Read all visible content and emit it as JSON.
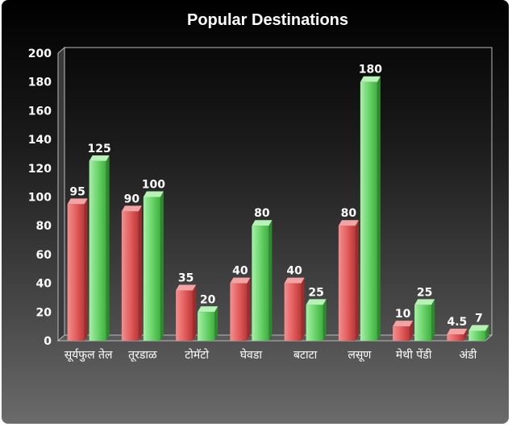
{
  "chart_data": {
    "type": "bar",
    "title": "Popular Destinations",
    "xlabel": "",
    "ylabel": "",
    "categories": [
      "सूर्यफुल तेल",
      "तूरडाळ",
      "टोमॅटो",
      "घेवडा",
      "बटाटा",
      "लसूण",
      "मेथी पेंडी",
      "अंडी"
    ],
    "series": [
      {
        "color": "#e25b5b",
        "values": [
          95,
          90,
          35,
          40,
          40,
          80,
          10,
          4.5
        ]
      },
      {
        "color": "#5fd15f",
        "values": [
          125,
          100,
          20,
          80,
          25,
          180,
          25,
          7
        ]
      }
    ],
    "ylim": [
      0,
      200
    ],
    "yticks": [
      "0",
      "20",
      "40",
      "60",
      "80",
      "100",
      "120",
      "140",
      "160",
      "180",
      "200"
    ],
    "data_labels": true,
    "grid": false
  }
}
